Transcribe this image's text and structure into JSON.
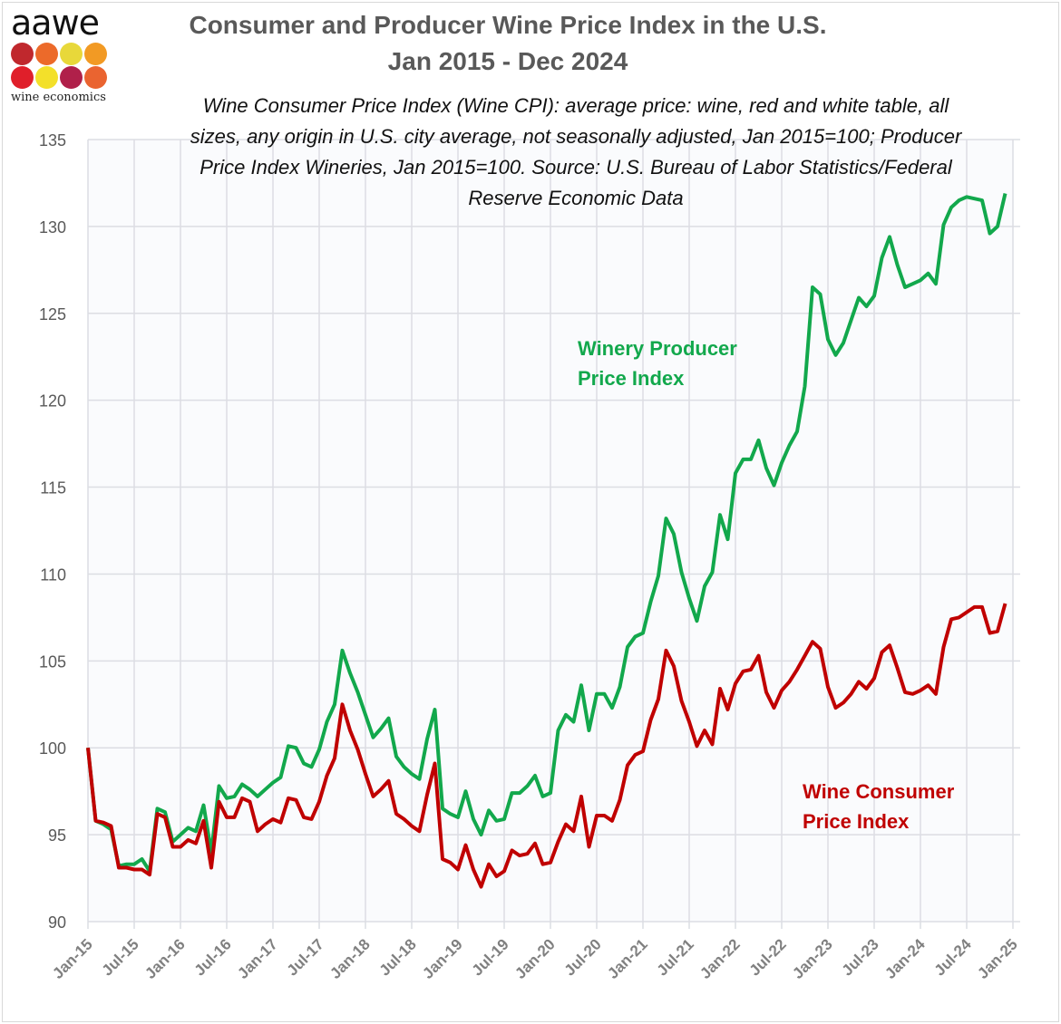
{
  "logo": {
    "wordmark": "aawe",
    "tagline": "wine economics",
    "dot_colors": [
      "#c0282d",
      "#ec6a2a",
      "#e8d83a",
      "#f29a24",
      "#e01f2a",
      "#f3e02a",
      "#b0204a",
      "#ea6430"
    ]
  },
  "title_line1": "Consumer and Producer Wine Price Index in the U.S.",
  "title_line2": "Jan 2015 - Dec 2024",
  "subtitle": "Wine Consumer Price Index (Wine CPI): average price: wine, red and white table, all sizes, any origin in U.S. city average, not seasonally adjusted, Jan 2015=100;  Producer Price Index Wineries, Jan 2015=100. Source: U.S. Bureau of Labor Statistics/Federal Reserve Economic Data",
  "chart_data": {
    "type": "line",
    "title": "Consumer and Producer Wine Price Index in the U.S. Jan 2015 - Dec 2024",
    "xlabel": "",
    "ylabel": "",
    "x_start": "Jan-15",
    "x_end": "Dec-24",
    "x_frequency": "monthly",
    "x_ticks": [
      "Jan-15",
      "Jul-15",
      "Jan-16",
      "Jul-16",
      "Jan-17",
      "Jul-17",
      "Jan-18",
      "Jul-18",
      "Jan-19",
      "Jul-19",
      "Jan-20",
      "Jul-20",
      "Jan-21",
      "Jul-21",
      "Jan-22",
      "Jul-22",
      "Jan-23",
      "Jul-23",
      "Jan-24",
      "Jul-24",
      "Jan-25"
    ],
    "y_ticks": [
      90,
      95,
      100,
      105,
      110,
      115,
      120,
      125,
      130,
      135
    ],
    "ylim": [
      90,
      135
    ],
    "grid": true,
    "series": [
      {
        "name": "Winery Producer Price Index",
        "color": "#12a84c",
        "values": [
          100,
          95.8,
          95.6,
          95.3,
          93.2,
          93.3,
          93.3,
          93.6,
          92.9,
          96.5,
          96.3,
          94.6,
          95.0,
          95.4,
          95.2,
          96.7,
          94.0,
          97.8,
          97.1,
          97.2,
          97.9,
          97.6,
          97.2,
          97.6,
          98.0,
          98.3,
          100.1,
          100.0,
          99.1,
          98.9,
          99.9,
          101.5,
          102.5,
          105.6,
          104.3,
          103.2,
          101.9,
          100.6,
          101.1,
          101.7,
          99.5,
          98.9,
          98.5,
          98.2,
          100.5,
          102.2,
          96.5,
          96.2,
          96.0,
          97.5,
          95.9,
          95.0,
          96.4,
          95.8,
          95.9,
          97.4,
          97.4,
          97.8,
          98.4,
          97.2,
          97.4,
          101.0,
          101.9,
          101.5,
          103.6,
          101.0,
          103.1,
          103.1,
          102.3,
          103.5,
          105.8,
          106.4,
          106.6,
          108.4,
          109.9,
          113.2,
          112.3,
          110.1,
          108.6,
          107.3,
          109.3,
          110.1,
          113.4,
          112.0,
          115.8,
          116.6,
          116.6,
          117.7,
          116.1,
          115.1,
          116.4,
          117.4,
          118.2,
          120.8,
          126.5,
          126.1,
          123.5,
          122.6,
          123.3,
          124.6,
          125.9,
          125.4,
          126.0,
          128.2,
          129.4,
          127.8,
          126.5,
          126.7,
          126.9,
          127.3,
          126.7,
          130.1,
          131.1,
          131.5,
          131.7,
          131.6,
          131.5,
          129.6,
          130.0,
          131.9
        ]
      },
      {
        "name": "Wine Consumer Price Index",
        "color": "#c00000",
        "values": [
          100,
          95.8,
          95.7,
          95.5,
          93.1,
          93.1,
          93.0,
          93.0,
          92.7,
          96.2,
          96.0,
          94.3,
          94.3,
          94.7,
          94.5,
          95.8,
          93.1,
          96.9,
          96.0,
          96.0,
          97.1,
          96.9,
          95.2,
          95.6,
          95.9,
          95.7,
          97.1,
          97.0,
          96.0,
          95.9,
          96.9,
          98.4,
          99.4,
          102.5,
          101.0,
          99.9,
          98.5,
          97.2,
          97.6,
          98.1,
          96.2,
          95.9,
          95.5,
          95.2,
          97.3,
          99.1,
          93.6,
          93.4,
          93.0,
          94.4,
          93.0,
          92.0,
          93.3,
          92.6,
          92.9,
          94.1,
          93.8,
          93.9,
          94.5,
          93.3,
          93.4,
          94.6,
          95.6,
          95.2,
          97.2,
          94.3,
          96.1,
          96.1,
          95.8,
          97.0,
          99.0,
          99.6,
          99.8,
          101.6,
          102.8,
          105.6,
          104.7,
          102.7,
          101.5,
          100.1,
          101.0,
          100.2,
          103.4,
          102.2,
          103.7,
          104.4,
          104.5,
          105.3,
          103.2,
          102.3,
          103.3,
          103.8,
          104.5,
          105.3,
          106.1,
          105.7,
          103.5,
          102.3,
          102.6,
          103.1,
          103.8,
          103.4,
          104.0,
          105.5,
          105.9,
          104.6,
          103.2,
          103.1,
          103.3,
          103.6,
          103.1,
          105.8,
          107.4,
          107.5,
          107.8,
          108.1,
          108.1,
          106.6,
          106.7,
          108.3
        ]
      }
    ],
    "annotations": [
      "Winery Producer Price Index",
      "Wine Consumer Price Index"
    ]
  },
  "labels": {
    "ppi_line1": "Winery Producer",
    "ppi_line2": "Price Index",
    "cpi_line1": "Wine Consumer",
    "cpi_line2": "Price Index"
  }
}
